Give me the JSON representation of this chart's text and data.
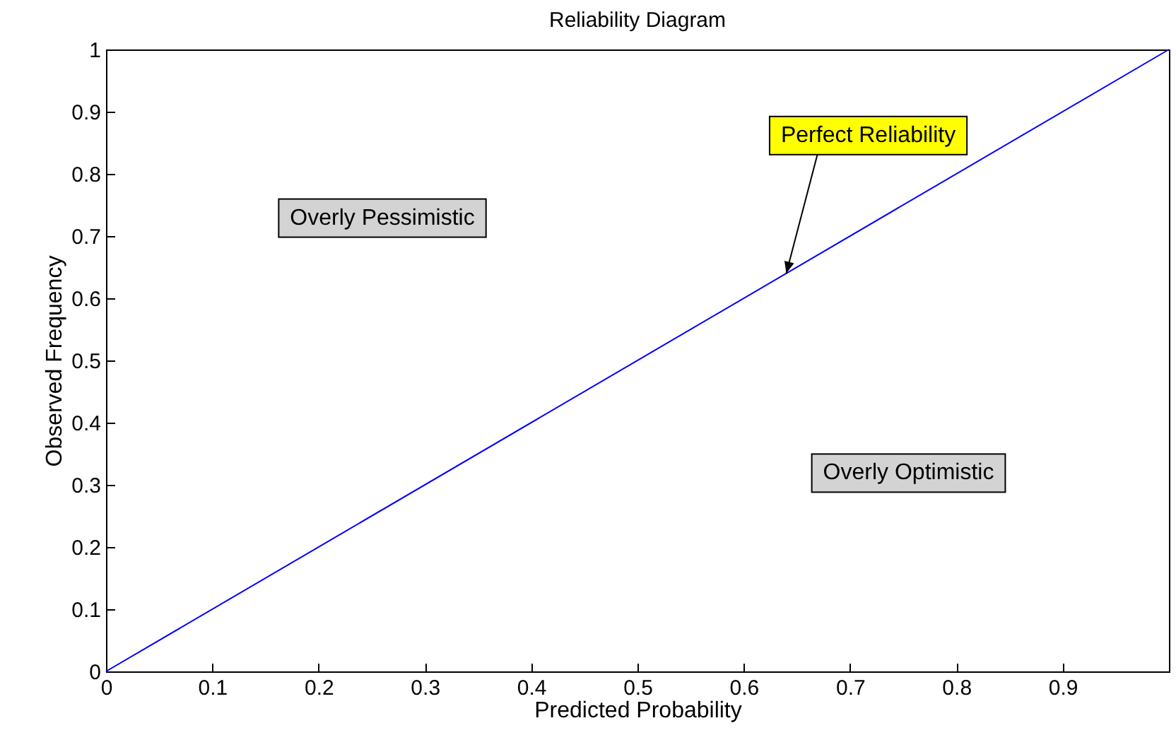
{
  "chart_data": {
    "type": "line",
    "title": "Reliability Diagram",
    "xlabel": "Predicted Probability",
    "ylabel": "Observed Frequency",
    "x": [
      0,
      1
    ],
    "series": [
      {
        "color": "#0000ff",
        "values": [
          0,
          1
        ]
      }
    ],
    "xlim": [
      0,
      1
    ],
    "ylim": [
      0,
      1
    ],
    "xticks": [
      0,
      0.1,
      0.2,
      0.3,
      0.4,
      0.5,
      0.6,
      0.7,
      0.8,
      0.9
    ],
    "yticks": [
      0,
      0.1,
      0.2,
      0.3,
      0.4,
      0.5,
      0.6,
      0.7,
      0.8,
      0.9,
      1
    ],
    "grid": false,
    "marker": "none",
    "line_style": "solid",
    "annotations": [
      {
        "text": "Perfect Reliability",
        "x": 0.64,
        "y": 0.64
      },
      "Overly Pessimistic",
      "Overly Optimistic"
    ]
  }
}
